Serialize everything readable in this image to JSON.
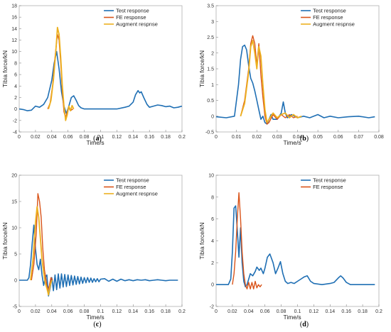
{
  "colors": {
    "test": "#1f6fb4",
    "fe": "#d9541a",
    "aug": "#edb120"
  },
  "chart_data": [
    {
      "type": "line",
      "caption": "(a)",
      "xlabel": "Time/s",
      "ylabel": "Tibia force/kN",
      "xlim": [
        0,
        0.2
      ],
      "ylim": [
        -4,
        18
      ],
      "xticks": [
        0,
        0.02,
        0.04,
        0.06,
        0.08,
        0.1,
        0.12,
        0.14,
        0.16,
        0.18,
        0.2
      ],
      "yticks": [
        -4,
        -2,
        0,
        2,
        4,
        6,
        8,
        10,
        12,
        14,
        16,
        18
      ],
      "legend_position": "top-right",
      "series": [
        {
          "name": "Test response",
          "color_key": "test",
          "width": 1.6,
          "x": [
            0,
            0.005,
            0.01,
            0.015,
            0.02,
            0.025,
            0.03,
            0.035,
            0.04,
            0.043,
            0.046,
            0.049,
            0.052,
            0.055,
            0.058,
            0.061,
            0.064,
            0.067,
            0.07,
            0.073,
            0.076,
            0.08,
            0.09,
            0.1,
            0.11,
            0.12,
            0.13,
            0.135,
            0.14,
            0.143,
            0.146,
            0.148,
            0.15,
            0.153,
            0.157,
            0.16,
            0.165,
            0.17,
            0.175,
            0.18,
            0.185,
            0.19,
            0.195,
            0.2
          ],
          "y": [
            0,
            -0.1,
            -0.3,
            -0.2,
            0.5,
            0.3,
            0.8,
            2,
            5,
            8,
            10,
            7,
            3,
            0.5,
            -0.8,
            0.5,
            2,
            2.3,
            1.5,
            0.6,
            0.2,
            0,
            0,
            0,
            0,
            0,
            0.3,
            0.5,
            1.2,
            2.5,
            3.2,
            2.8,
            3,
            2,
            0.8,
            0.3,
            0.5,
            0.7,
            0.6,
            0.4,
            0.5,
            0.2,
            0.3,
            0.5
          ]
        },
        {
          "name": "FE response",
          "color_key": "fe",
          "width": 1.4,
          "x": [
            0.035,
            0.038,
            0.041,
            0.044,
            0.047,
            0.049,
            0.051,
            0.053,
            0.055,
            0.057,
            0.059,
            0.061,
            0.063,
            0.066
          ],
          "y": [
            0,
            1,
            4,
            9,
            13,
            12,
            8,
            3,
            -0.5,
            -1.5,
            -0.5,
            0.2,
            -0.3,
            0
          ]
        },
        {
          "name": "Augment respnse",
          "color_key": "aug",
          "width": 1.8,
          "x": [
            0.036,
            0.039,
            0.042,
            0.045,
            0.047,
            0.049,
            0.051,
            0.053,
            0.055,
            0.057,
            0.059,
            0.061,
            0.063,
            0.065,
            0.067
          ],
          "y": [
            0,
            1.5,
            5,
            10,
            14.2,
            13,
            9,
            4,
            0.5,
            -2,
            -1,
            0.5,
            -0.3,
            0.6,
            0
          ]
        }
      ]
    },
    {
      "type": "line",
      "caption": "(b)",
      "xlabel": "Time/s",
      "ylabel": "Tibia force/kN",
      "xlim": [
        0,
        0.08
      ],
      "ylim": [
        -0.5,
        3.5
      ],
      "xticks": [
        0,
        0.01,
        0.02,
        0.03,
        0.04,
        0.05,
        0.06,
        0.07,
        0.08
      ],
      "yticks": [
        -0.5,
        0,
        0.5,
        1,
        1.5,
        2,
        2.5,
        3,
        3.5
      ],
      "legend_position": "top-right",
      "series": [
        {
          "name": "Test response",
          "color_key": "test",
          "width": 1.6,
          "x": [
            0,
            0.005,
            0.009,
            0.011,
            0.012,
            0.013,
            0.014,
            0.015,
            0.016,
            0.017,
            0.018,
            0.019,
            0.02,
            0.021,
            0.022,
            0.023,
            0.024,
            0.025,
            0.026,
            0.027,
            0.028,
            0.03,
            0.032,
            0.033,
            0.034,
            0.035,
            0.037,
            0.04,
            0.043,
            0.046,
            0.05,
            0.053,
            0.056,
            0.06,
            0.065,
            0.07,
            0.075,
            0.078
          ],
          "y": [
            -0.02,
            -0.05,
            0,
            1,
            1.8,
            2.2,
            2.25,
            2.1,
            1.6,
            1.2,
            1.05,
            0.8,
            0.5,
            0.2,
            -0.1,
            0,
            -0.2,
            -0.25,
            -0.1,
            0.05,
            -0.1,
            -0.1,
            0.1,
            0.45,
            0.1,
            -0.05,
            0.05,
            -0.05,
            0,
            -0.05,
            0.05,
            -0.05,
            0,
            -0.05,
            -0.02,
            0,
            -0.05,
            -0.02
          ]
        },
        {
          "name": "FE response",
          "color_key": "fe",
          "width": 1.4,
          "x": [
            0.012,
            0.014,
            0.016,
            0.017,
            0.018,
            0.019,
            0.02,
            0.021,
            0.022,
            0.023,
            0.024,
            0.025,
            0.026,
            0.028,
            0.03,
            0.032,
            0.034,
            0.036,
            0.038,
            0.04
          ],
          "y": [
            0,
            0.5,
            1.5,
            2.3,
            2.55,
            2.3,
            1.6,
            2.3,
            1.3,
            0.6,
            0,
            -0.25,
            -0.2,
            0.05,
            -0.1,
            0.05,
            -0.05,
            0.05,
            -0.05,
            0
          ]
        },
        {
          "name": "Augment respnse",
          "color_key": "aug",
          "width": 1.8,
          "x": [
            0.012,
            0.014,
            0.016,
            0.017,
            0.018,
            0.019,
            0.02,
            0.021,
            0.022,
            0.023,
            0.024,
            0.025,
            0.026,
            0.028,
            0.03,
            0.032,
            0.034,
            0.036,
            0.038,
            0.04,
            0.042
          ],
          "y": [
            0,
            0.4,
            1.4,
            2.2,
            2.4,
            2,
            1.5,
            2.2,
            1.9,
            1,
            0.2,
            -0.2,
            -0.1,
            0.1,
            -0.05,
            0.05,
            0.1,
            -0.05,
            0.05,
            -0.05,
            0
          ]
        }
      ]
    },
    {
      "type": "line",
      "caption": "(c)",
      "xlabel": "Time/s",
      "ylabel": "Tibia force/kN",
      "xlim": [
        0,
        0.2
      ],
      "ylim": [
        -5,
        20
      ],
      "xticks": [
        0,
        0.02,
        0.04,
        0.06,
        0.08,
        0.1,
        0.12,
        0.14,
        0.16,
        0.18,
        0.2
      ],
      "yticks": [
        -5,
        0,
        5,
        10,
        15,
        20
      ],
      "legend_position": "top-right",
      "series": [
        {
          "name": "Test response",
          "color_key": "test",
          "width": 1.6,
          "x": [
            0,
            0.005,
            0.01,
            0.012,
            0.014,
            0.016,
            0.018,
            0.02,
            0.022,
            0.024,
            0.026,
            0.028,
            0.03,
            0.032,
            0.034,
            0.036,
            0.038,
            0.04,
            0.042,
            0.044,
            0.046,
            0.048,
            0.05,
            0.052,
            0.054,
            0.056,
            0.058,
            0.06,
            0.062,
            0.064,
            0.066,
            0.068,
            0.07,
            0.072,
            0.074,
            0.076,
            0.078,
            0.08,
            0.082,
            0.084,
            0.086,
            0.088,
            0.09,
            0.092,
            0.094,
            0.096,
            0.098,
            0.1,
            0.105,
            0.11,
            0.115,
            0.12,
            0.125,
            0.13,
            0.135,
            0.14,
            0.145,
            0.15,
            0.155,
            0.16,
            0.165,
            0.17,
            0.175,
            0.18,
            0.185,
            0.19,
            0.195
          ],
          "y": [
            0,
            0,
            0,
            0.5,
            3,
            7,
            10.5,
            6,
            3,
            2,
            4,
            1,
            -1,
            0.5,
            1,
            -3,
            -1.5,
            0.5,
            -2,
            1,
            -1.8,
            1.2,
            -1.5,
            1.2,
            -1.3,
            1.1,
            -1.2,
            1,
            -1,
            0.9,
            -0.9,
            0.8,
            -0.8,
            0.7,
            -0.7,
            0.6,
            -0.6,
            0.5,
            -0.5,
            0.5,
            -0.4,
            0.4,
            -0.4,
            0.3,
            -0.3,
            0.3,
            -0.3,
            0.2,
            0.3,
            -0.2,
            0.2,
            -0.2,
            0.2,
            -0.1,
            0.1,
            -0.1,
            0.1,
            0,
            0.1,
            -0.1,
            0,
            0.1,
            0,
            -0.1,
            0,
            0,
            0
          ]
        },
        {
          "name": "FE response",
          "color_key": "fe",
          "width": 1.4,
          "x": [
            0.015,
            0.018,
            0.021,
            0.023,
            0.025,
            0.027,
            0.029,
            0.031,
            0.033,
            0.035,
            0.037,
            0.039,
            0.041
          ],
          "y": [
            0,
            3,
            9,
            16.5,
            15,
            12,
            6,
            2,
            0,
            -2,
            -1,
            0.5,
            0
          ]
        },
        {
          "name": "Augment respnse",
          "color_key": "aug",
          "width": 1.8,
          "x": [
            0.014,
            0.017,
            0.02,
            0.022,
            0.024,
            0.026,
            0.028,
            0.03,
            0.032,
            0.034,
            0.036,
            0.038,
            0.04
          ],
          "y": [
            0,
            4,
            11,
            14,
            12,
            8,
            4,
            1.5,
            -0.5,
            -1.5,
            -2.8,
            -1,
            0
          ]
        }
      ]
    },
    {
      "type": "line",
      "caption": "(d)",
      "xlabel": "Time/s",
      "ylabel": "Tibia force/kN",
      "xlim": [
        0,
        0.2
      ],
      "ylim": [
        -2,
        10
      ],
      "xticks": [
        0,
        0.02,
        0.04,
        0.06,
        0.08,
        0.1,
        0.12,
        0.14,
        0.16,
        0.18,
        0.2
      ],
      "yticks": [
        -2,
        0,
        2,
        4,
        6,
        8,
        10
      ],
      "legend_position": "top-right",
      "series": [
        {
          "name": "Test response",
          "color_key": "test",
          "width": 1.6,
          "x": [
            0,
            0.005,
            0.01,
            0.015,
            0.018,
            0.02,
            0.022,
            0.024,
            0.026,
            0.028,
            0.03,
            0.032,
            0.034,
            0.036,
            0.038,
            0.04,
            0.042,
            0.045,
            0.048,
            0.05,
            0.053,
            0.055,
            0.058,
            0.06,
            0.063,
            0.066,
            0.07,
            0.073,
            0.076,
            0.079,
            0.082,
            0.085,
            0.088,
            0.092,
            0.096,
            0.1,
            0.104,
            0.108,
            0.112,
            0.116,
            0.12,
            0.13,
            0.14,
            0.145,
            0.15,
            0.153,
            0.156,
            0.16,
            0.165,
            0.17,
            0.18,
            0.19,
            0.195
          ],
          "y": [
            0,
            0,
            0,
            0,
            0.5,
            3,
            7,
            7.2,
            5,
            2.5,
            5.2,
            2,
            0.3,
            -0.2,
            0,
            0.5,
            1,
            0.8,
            1.2,
            1.6,
            1.3,
            1.5,
            1,
            1.5,
            2.5,
            2.8,
            2,
            1,
            1.5,
            2.1,
            1,
            0.3,
            0.1,
            0.2,
            0.1,
            0.3,
            0.5,
            0.7,
            0.8,
            0.3,
            0.1,
            0,
            0.1,
            0.2,
            0.6,
            0.8,
            0.6,
            0.2,
            0,
            0,
            0,
            0,
            0
          ]
        },
        {
          "name": "FE response",
          "color_key": "fe",
          "width": 1.4,
          "x": [
            0.02,
            0.022,
            0.024,
            0.026,
            0.028,
            0.03,
            0.032,
            0.034,
            0.036,
            0.038,
            0.04,
            0.042,
            0.044,
            0.046,
            0.048,
            0.05,
            0.052,
            0.054,
            0.056
          ],
          "y": [
            0,
            1,
            3,
            6,
            8.4,
            6,
            3,
            1,
            0,
            -0.4,
            0.2,
            -0.4,
            0.2,
            -0.4,
            0.3,
            -0.3,
            0,
            -0.2,
            0
          ]
        }
      ]
    }
  ]
}
